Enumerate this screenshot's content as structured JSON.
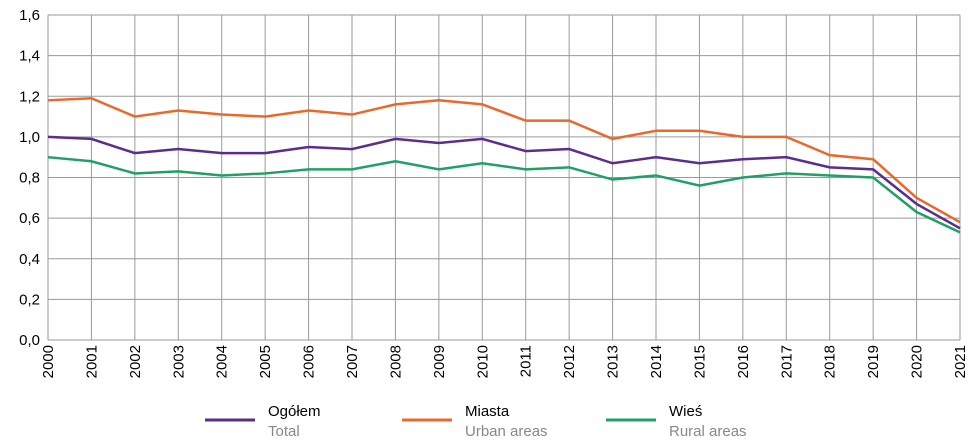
{
  "chart_data": {
    "type": "line",
    "x": [
      2000,
      2001,
      2002,
      2003,
      2004,
      2005,
      2006,
      2007,
      2008,
      2009,
      2010,
      2011,
      2012,
      2013,
      2014,
      2015,
      2016,
      2017,
      2018,
      2019,
      2020,
      2021
    ],
    "xlim": [
      2000,
      2021
    ],
    "ylim": [
      0,
      1.6
    ],
    "yticks": [
      {
        "value": 0,
        "label": "0,0"
      },
      {
        "value": 0.2,
        "label": "0,2"
      },
      {
        "value": 0.4,
        "label": "0,4"
      },
      {
        "value": 0.6,
        "label": "0,6"
      },
      {
        "value": 0.8,
        "label": "0,8"
      },
      {
        "value": 1.0,
        "label": "1,0"
      },
      {
        "value": 1.2,
        "label": "1,2"
      },
      {
        "value": 1.4,
        "label": "1,4"
      },
      {
        "value": 1.6,
        "label": "1,6"
      }
    ],
    "grid": true,
    "series": [
      {
        "name": "Ogółem",
        "label_en": "Total",
        "color": "#5b2d8e",
        "values": [
          1.0,
          0.99,
          0.92,
          0.94,
          0.92,
          0.92,
          0.95,
          0.94,
          0.99,
          0.97,
          0.99,
          0.93,
          0.94,
          0.87,
          0.9,
          0.87,
          0.89,
          0.9,
          0.85,
          0.84,
          0.67,
          0.55
        ]
      },
      {
        "name": "Miasta",
        "label_en": "Urban areas",
        "color": "#e8692b",
        "values": [
          1.18,
          1.19,
          1.1,
          1.13,
          1.11,
          1.1,
          1.13,
          1.11,
          1.16,
          1.18,
          1.16,
          1.08,
          1.08,
          0.99,
          1.03,
          1.03,
          1.0,
          1.0,
          0.91,
          0.89,
          0.7,
          0.58
        ]
      },
      {
        "name": "Wieś",
        "label_en": "Rural areas",
        "color": "#21a066",
        "values": [
          0.9,
          0.88,
          0.82,
          0.83,
          0.81,
          0.82,
          0.84,
          0.84,
          0.88,
          0.84,
          0.87,
          0.84,
          0.85,
          0.79,
          0.81,
          0.76,
          0.8,
          0.82,
          0.81,
          0.8,
          0.63,
          0.53
        ]
      }
    ]
  }
}
